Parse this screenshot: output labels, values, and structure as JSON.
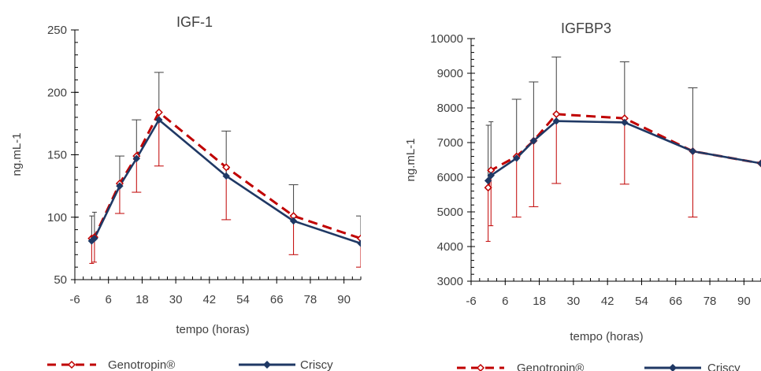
{
  "colors": {
    "genotropin": "#c00000",
    "criscy": "#1f3864",
    "axis": "#000000",
    "text": "#404040",
    "errorbar_criscy": "#404040"
  },
  "chart_data": [
    {
      "type": "line",
      "title": "IGF-1",
      "xlabel": "tempo (horas)",
      "ylabel": "ng.mL-1",
      "xlim": [
        -6,
        96
      ],
      "ylim": [
        50,
        250
      ],
      "xticks": [
        -6,
        6,
        18,
        30,
        42,
        54,
        66,
        78,
        90
      ],
      "yticks": [
        50,
        100,
        150,
        200,
        250
      ],
      "grid": false,
      "legend": "bottom",
      "series": [
        {
          "name": "Genotropin®",
          "style": "dashed",
          "marker": "open-diamond",
          "x": [
            0,
            1,
            10,
            16,
            24,
            48,
            72,
            96
          ],
          "y": [
            83,
            84,
            127,
            149,
            184,
            140,
            101,
            83
          ],
          "err_lower": [
            20,
            20,
            24,
            29,
            43,
            42,
            31,
            23
          ],
          "err_upper": [
            0,
            0,
            0,
            0,
            0,
            0,
            0,
            0
          ]
        },
        {
          "name": "Criscy",
          "style": "solid",
          "marker": "filled-diamond",
          "x": [
            0,
            1,
            10,
            16,
            24,
            48,
            72,
            96
          ],
          "y": [
            81,
            83,
            125,
            147,
            178,
            133,
            97,
            79
          ],
          "err_lower": [
            0,
            0,
            0,
            0,
            0,
            0,
            0,
            0
          ],
          "err_upper": [
            20,
            21,
            24,
            31,
            38,
            36,
            29,
            22
          ]
        }
      ]
    },
    {
      "type": "line",
      "title": "IGFBP3",
      "xlabel": "tempo (horas)",
      "ylabel": "ng.mL-1",
      "xlim": [
        -6,
        96
      ],
      "ylim": [
        3000,
        10000
      ],
      "xticks": [
        -6,
        6,
        18,
        30,
        42,
        54,
        66,
        78,
        90
      ],
      "yticks": [
        3000,
        4000,
        5000,
        6000,
        7000,
        8000,
        9000,
        10000
      ],
      "grid": false,
      "legend": "bottom",
      "series": [
        {
          "name": "Genotropin®",
          "style": "dashed",
          "marker": "open-diamond",
          "x": [
            0,
            1,
            10,
            16,
            24,
            48,
            72,
            96
          ],
          "y": [
            5700,
            6200,
            6600,
            7050,
            7820,
            7700,
            6750,
            6400
          ],
          "err_lower": [
            1550,
            1600,
            1750,
            1900,
            2000,
            1900,
            1900,
            0
          ],
          "err_upper": [
            0,
            0,
            0,
            0,
            0,
            0,
            0,
            0
          ]
        },
        {
          "name": "Criscy",
          "style": "solid",
          "marker": "filled-diamond",
          "x": [
            0,
            1,
            10,
            16,
            24,
            48,
            72,
            96
          ],
          "y": [
            5900,
            6050,
            6550,
            7050,
            7620,
            7580,
            6750,
            6400
          ],
          "err_lower": [
            0,
            0,
            0,
            0,
            0,
            0,
            0,
            0
          ],
          "err_upper": [
            1600,
            1550,
            1700,
            1700,
            1850,
            1750,
            1830,
            0
          ]
        }
      ]
    }
  ]
}
